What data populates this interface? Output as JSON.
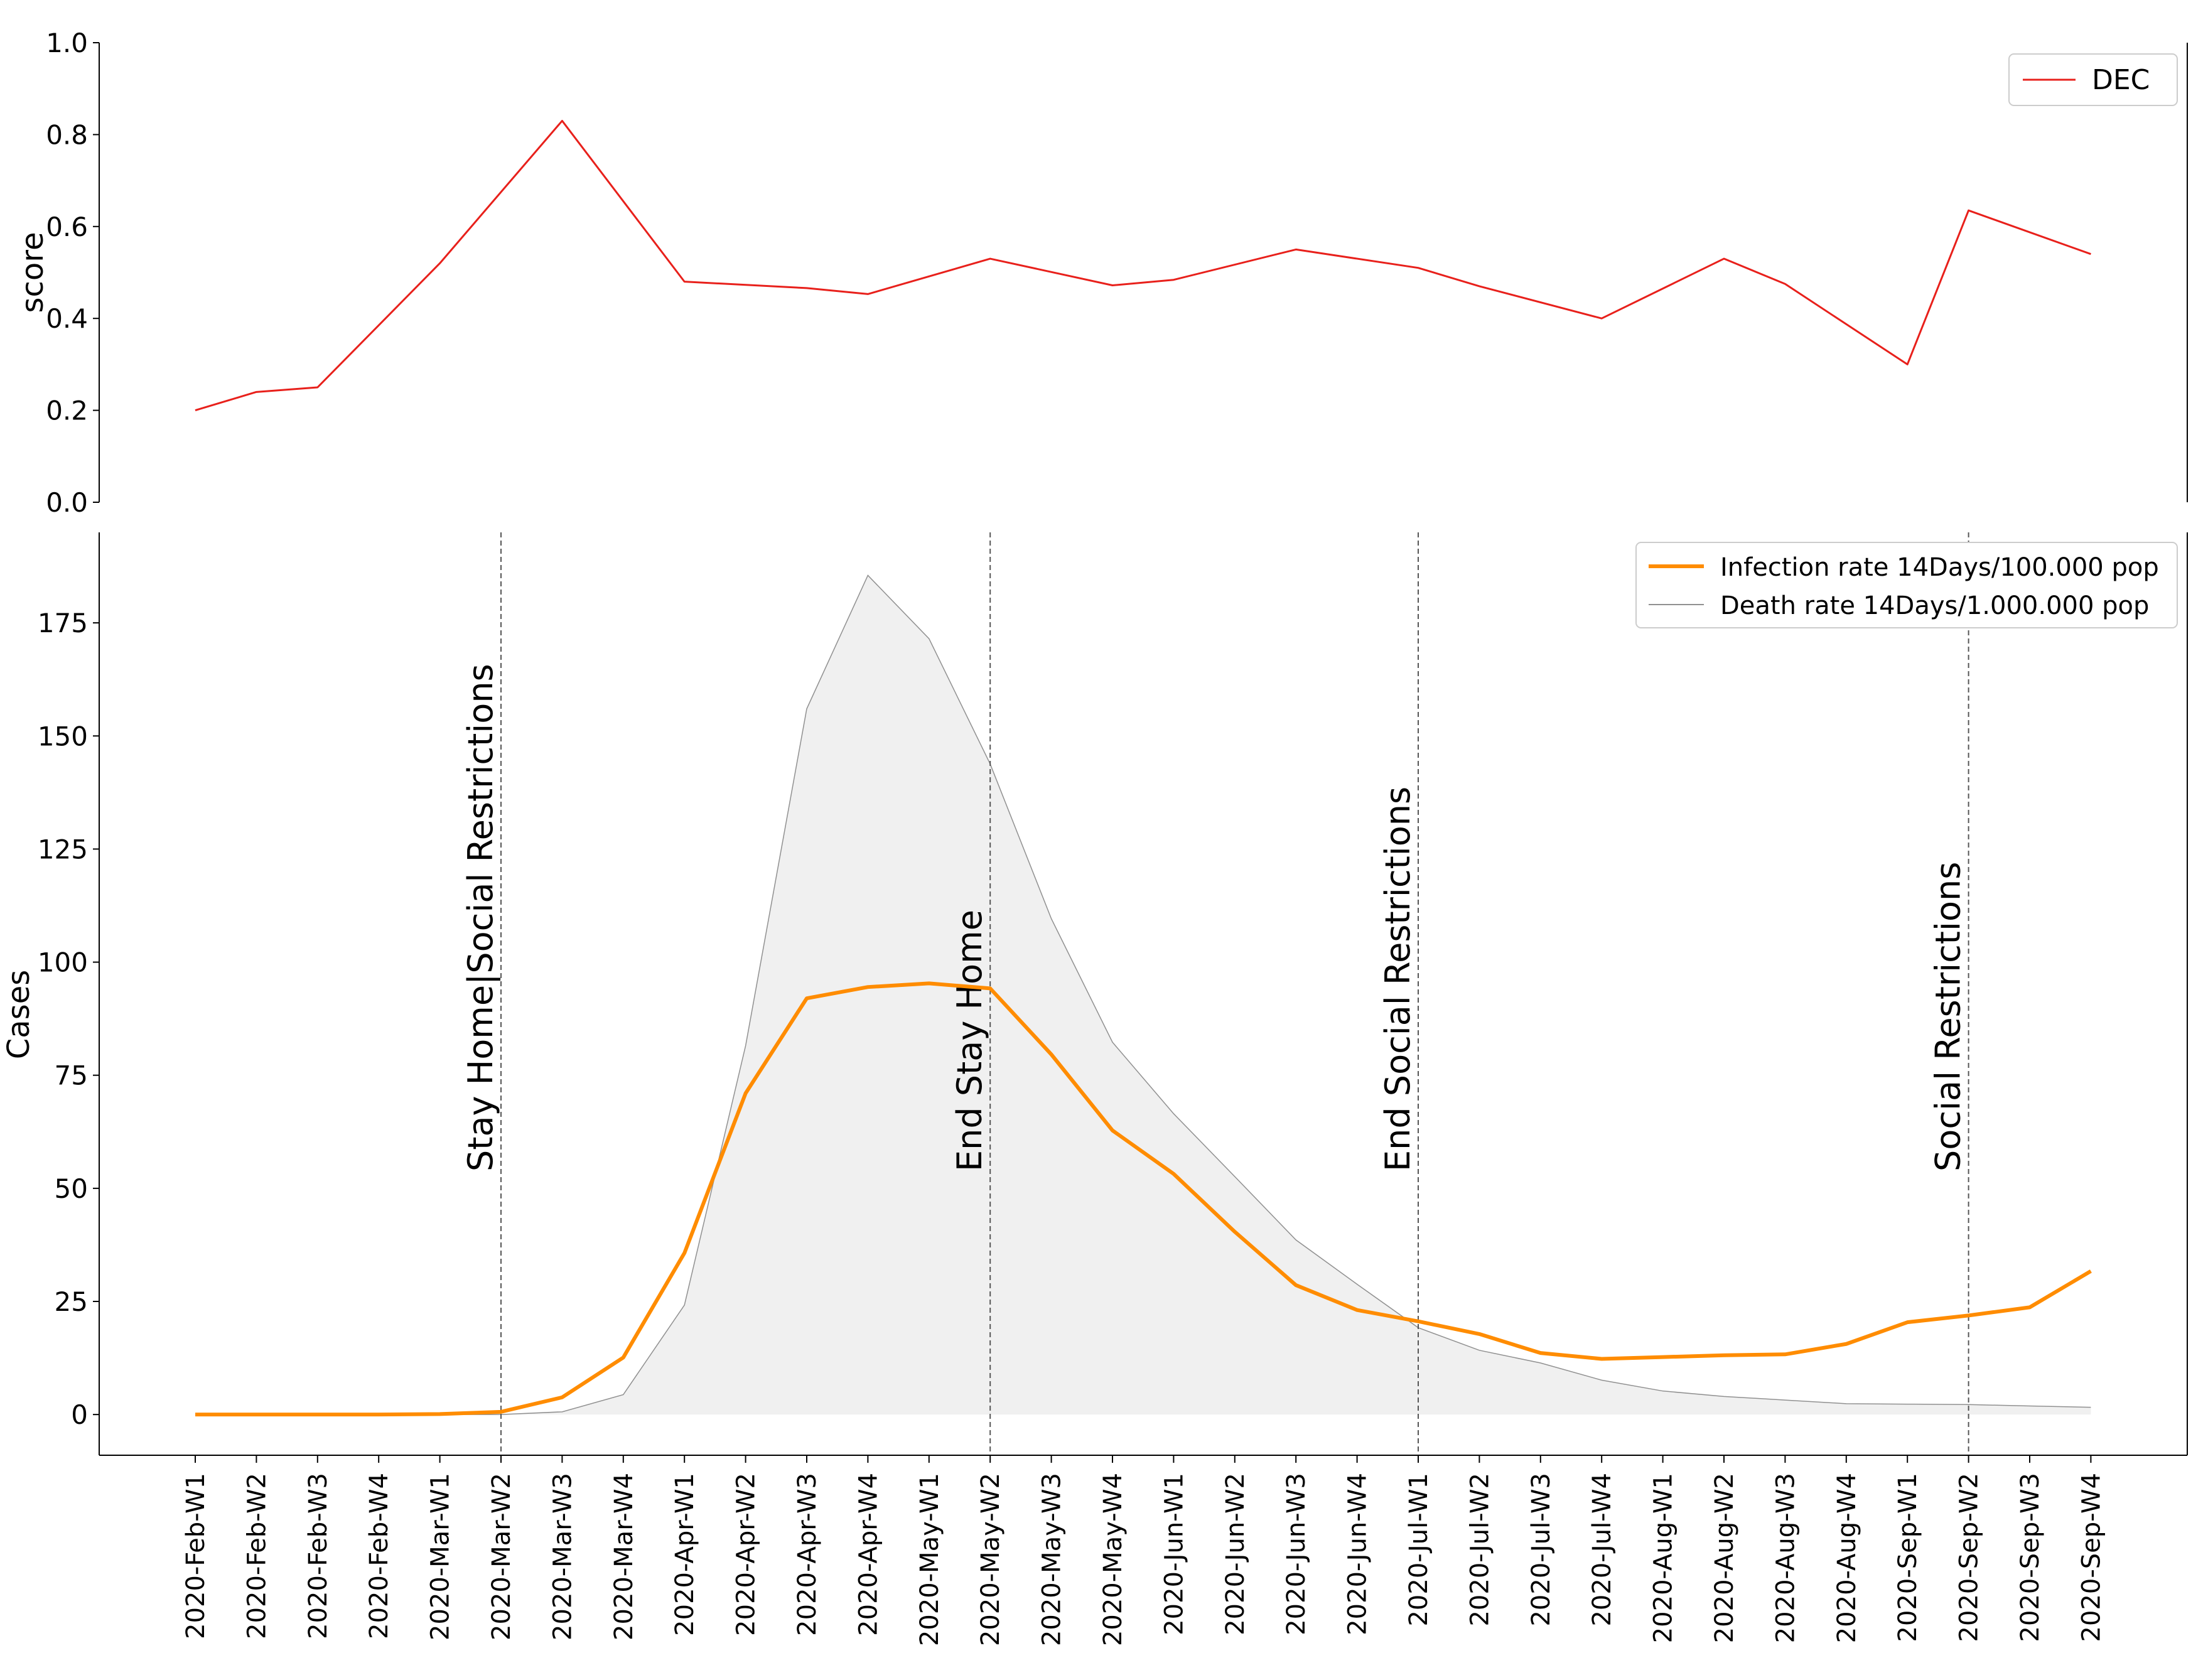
{
  "chart_data": [
    {
      "type": "line",
      "ylabel": "score",
      "ylim": [
        0,
        1.0
      ],
      "yticks": [
        0.0,
        0.2,
        0.4,
        0.6,
        0.8,
        1.0
      ],
      "ytick_labels": [
        "0.0",
        "0.2",
        "0.4",
        "0.6",
        "0.8",
        "1.0"
      ],
      "legend_position": "top-right",
      "series": [
        {
          "name": "DEC",
          "color": "#e8201b",
          "values": [
            0.2,
            0.24,
            0.25,
            0.52,
            0.83,
            0.48,
            0.466,
            0.453,
            0.53,
            0.472,
            0.484,
            0.55,
            0.51,
            0.47,
            0.4,
            0.53,
            0.475,
            0.3,
            0.635,
            0.54
          ],
          "x_index": [
            0,
            1,
            2,
            4,
            6,
            8,
            10,
            11,
            13,
            15,
            16,
            18,
            20,
            21,
            23,
            25,
            26,
            28,
            29,
            31
          ]
        }
      ]
    },
    {
      "type": "line",
      "ylabel": "Cases",
      "ylim": [
        -9,
        195
      ],
      "yticks": [
        0,
        25,
        50,
        75,
        100,
        125,
        150,
        175
      ],
      "ytick_labels": [
        "0",
        "25",
        "50",
        "75",
        "100",
        "125",
        "150",
        "175"
      ],
      "legend_position": "top-right",
      "categories": [
        "2020-Feb-W1",
        "2020-Feb-W2",
        "2020-Feb-W3",
        "2020-Feb-W4",
        "2020-Mar-W1",
        "2020-Mar-W2",
        "2020-Mar-W3",
        "2020-Mar-W4",
        "2020-Apr-W1",
        "2020-Apr-W2",
        "2020-Apr-W3",
        "2020-Apr-W4",
        "2020-May-W1",
        "2020-May-W2",
        "2020-May-W3",
        "2020-May-W4",
        "2020-Jun-W1",
        "2020-Jun-W2",
        "2020-Jun-W3",
        "2020-Jun-W4",
        "2020-Jul-W1",
        "2020-Jul-W2",
        "2020-Jul-W3",
        "2020-Jul-W4",
        "2020-Aug-W1",
        "2020-Aug-W2",
        "2020-Aug-W3",
        "2020-Aug-W4",
        "2020-Sep-W1",
        "2020-Sep-W2",
        "2020-Sep-W3",
        "2020-Sep-W4"
      ],
      "series": [
        {
          "name": "Infection rate 14Days/100.000 pop",
          "color": "#ff8c00",
          "values": [
            0,
            0,
            0,
            0,
            0.1,
            0.6,
            3.8,
            12.6,
            35.7,
            71,
            92,
            94.5,
            95.3,
            94.2,
            79.6,
            62.8,
            53.2,
            40.4,
            28.6,
            23.1,
            20.6,
            17.8,
            13.6,
            12.3,
            12.7,
            13.1,
            13.3,
            15.6,
            20.4,
            21.9,
            23.7,
            31.7
          ]
        },
        {
          "name": "Death rate 14Days/1.000.000 pop",
          "color": "#909090",
          "fill": "#f0f0f0",
          "values": [
            0,
            0,
            0,
            0,
            0,
            0,
            0.6,
            4.4,
            24.2,
            81.5,
            156,
            185.5,
            171.5,
            143.8,
            109.6,
            82.3,
            66.5,
            52.6,
            38.6,
            28.8,
            19.2,
            14.2,
            11.4,
            7.6,
            5.2,
            4.0,
            3.2,
            2.4,
            2.3,
            2.2,
            1.9,
            1.6
          ]
        }
      ],
      "annotations": [
        {
          "label": "Stay Home|Social Restrictions",
          "category": "2020-Mar-W2"
        },
        {
          "label": "End Stay Home",
          "category": "2020-May-W2"
        },
        {
          "label": "End Social Restrictions",
          "category": "2020-Jul-W1"
        },
        {
          "label": "Social Restrictions",
          "category": "2020-Sep-W2"
        }
      ]
    }
  ]
}
